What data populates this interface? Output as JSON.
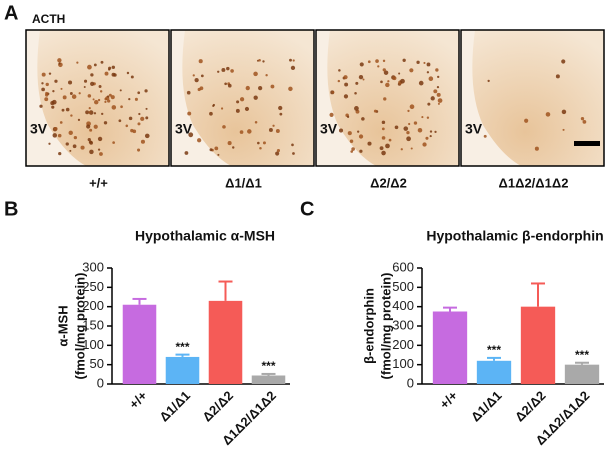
{
  "panel_a": {
    "panel_label": "A",
    "stain": "ACTH",
    "region_labels": [
      "3V",
      "3V",
      "3V",
      "3V"
    ],
    "genotypes": [
      "+/+",
      "Δ1/Δ1",
      "Δ2/Δ2",
      "Δ1Δ2/Δ1Δ2"
    ]
  },
  "panel_labels": [
    "B",
    "C"
  ],
  "chart_data": [
    {
      "type": "bar",
      "title": "Hypothalamic α-MSH",
      "ylabel": [
        "α-MSH",
        "(fmol/mg protein)"
      ],
      "categories": [
        "+/+",
        "Δ1/Δ1",
        "Δ2/Δ2",
        "Δ1Δ2/Δ1Δ2"
      ],
      "values": [
        205,
        70,
        215,
        22
      ],
      "errors": [
        15,
        6,
        50,
        4
      ],
      "colors": [
        "#c66be0",
        "#5cb4f5",
        "#f55b57",
        "#a9a9a9"
      ],
      "significance": [
        null,
        "***",
        null,
        "***"
      ],
      "ylim": [
        0,
        300
      ],
      "yticks": [
        0,
        50,
        100,
        150,
        200,
        250,
        300
      ]
    },
    {
      "type": "bar",
      "title": "Hypothalamic β-endorphin",
      "ylabel": [
        "β-endorphin",
        "(fmol/mg protein)"
      ],
      "categories": [
        "+/+",
        "Δ1/Δ1",
        "Δ2/Δ2",
        "Δ1Δ2/Δ1Δ2"
      ],
      "values": [
        375,
        120,
        400,
        100
      ],
      "errors": [
        20,
        15,
        120,
        10
      ],
      "colors": [
        "#c66be0",
        "#5cb4f5",
        "#f55b57",
        "#a9a9a9"
      ],
      "significance": [
        null,
        "***",
        null,
        "***"
      ],
      "ylim": [
        0,
        600
      ],
      "yticks": [
        0,
        100,
        200,
        300,
        400,
        500,
        600
      ]
    }
  ]
}
